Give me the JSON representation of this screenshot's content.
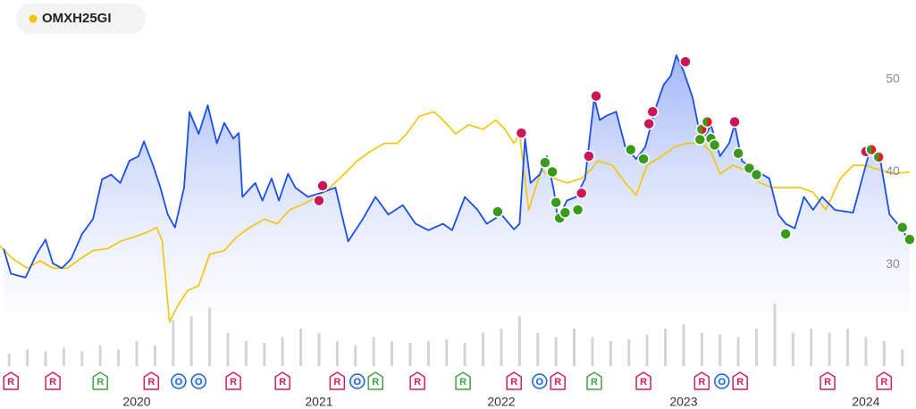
{
  "chart_data": {
    "type": "line",
    "legend": "top-left",
    "xlim": [
      2019.25,
      2024.27
    ],
    "xticks": [
      2020,
      2021,
      2022,
      2023,
      2024
    ],
    "ylim": [
      25,
      55
    ],
    "yticks": [
      30,
      40,
      50
    ],
    "series": [
      {
        "color": "#1a4fe6",
        "area": true,
        "x": [
          2019.27,
          2019.31,
          2019.39,
          2019.45,
          2019.5,
          2019.54,
          2019.59,
          2019.64,
          2019.7,
          2019.76,
          2019.81,
          2019.86,
          2019.91,
          2019.96,
          2020.01,
          2020.04,
          2020.09,
          2020.13,
          2020.17,
          2020.21,
          2020.26,
          2020.29,
          2020.34,
          2020.39,
          2020.44,
          2020.48,
          2020.53,
          2020.56,
          2020.58,
          2020.65,
          2020.69,
          2020.74,
          2020.78,
          2020.83,
          2020.87,
          2020.94,
          2021.02,
          2021.09,
          2021.16,
          2021.24,
          2021.31,
          2021.38,
          2021.46,
          2021.53,
          2021.6,
          2021.68,
          2021.73,
          2021.8,
          2021.87,
          2021.92,
          2022.0,
          2022.07,
          2022.1,
          2022.13,
          2022.16,
          2022.21,
          2022.25,
          2022.29,
          2022.31,
          2022.36,
          2022.41,
          2022.46,
          2022.51,
          2022.54,
          2022.58,
          2022.63,
          2022.68,
          2022.74,
          2022.79,
          2022.84,
          2022.89,
          2022.93,
          2022.96,
          2023.0,
          2023.05,
          2023.1,
          2023.15,
          2023.2,
          2023.25,
          2023.28,
          2023.32,
          2023.39,
          2023.47,
          2023.52,
          2023.56,
          2023.61,
          2023.66,
          2023.71,
          2023.76,
          2023.83,
          2023.93,
          2023.98,
          2024.02,
          2024.08,
          2024.13,
          2024.19,
          2024.24
        ],
        "values": [
          31.7,
          29.0,
          28.6,
          31.1,
          32.7,
          30.1,
          29.6,
          30.6,
          33.3,
          34.9,
          39.2,
          39.7,
          38.8,
          41.2,
          41.7,
          43.3,
          40.7,
          38.3,
          35.4,
          34.0,
          38.3,
          46.5,
          44.1,
          47.2,
          43.1,
          45.3,
          43.6,
          44.2,
          37.3,
          38.8,
          36.9,
          39.3,
          36.9,
          39.8,
          38.3,
          37.3,
          37.8,
          38.3,
          32.5,
          34.9,
          37.3,
          35.4,
          36.4,
          34.4,
          33.7,
          34.4,
          33.7,
          37.3,
          35.9,
          34.4,
          35.4,
          33.8,
          34.4,
          43.6,
          38.8,
          39.7,
          41.7,
          37.8,
          34.9,
          36.9,
          37.3,
          39.3,
          48.0,
          45.6,
          46.1,
          46.5,
          42.7,
          41.4,
          42.7,
          46.5,
          49.4,
          50.4,
          52.6,
          50.9,
          48.0,
          43.1,
          45.1,
          41.7,
          43.1,
          45.1,
          41.2,
          40.2,
          39.3,
          35.4,
          34.4,
          33.9,
          37.3,
          35.9,
          37.3,
          35.9,
          35.6,
          39.3,
          42.2,
          41.2,
          35.4,
          34.0,
          32.5
        ]
      },
      {
        "name": "OMXH25GI",
        "color": "#f5c400",
        "x": [
          2019.25,
          2019.32,
          2019.4,
          2019.47,
          2019.54,
          2019.62,
          2019.69,
          2019.76,
          2019.84,
          2019.91,
          2019.99,
          2020.06,
          2020.11,
          2020.14,
          2020.18,
          2020.23,
          2020.28,
          2020.34,
          2020.4,
          2020.48,
          2020.55,
          2020.62,
          2020.7,
          2020.77,
          2020.84,
          2020.92,
          2020.99,
          2021.06,
          2021.14,
          2021.21,
          2021.28,
          2021.36,
          2021.43,
          2021.48,
          2021.55,
          2021.63,
          2021.68,
          2021.75,
          2021.82,
          2021.9,
          2021.97,
          2022.02,
          2022.07,
          2022.1,
          2022.15,
          2022.22,
          2022.29,
          2022.36,
          2022.44,
          2022.49,
          2022.53,
          2022.61,
          2022.68,
          2022.74,
          2022.8,
          2022.88,
          2022.95,
          2023.02,
          2023.1,
          2023.15,
          2023.2,
          2023.27,
          2023.34,
          2023.42,
          2023.49,
          2023.56,
          2023.64,
          2023.71,
          2023.78,
          2023.86,
          2023.93,
          2024.0,
          2024.08,
          2024.15,
          2024.24
        ],
        "values": [
          32.0,
          30.6,
          29.6,
          30.4,
          29.6,
          29.6,
          30.6,
          31.5,
          31.7,
          32.5,
          33.0,
          33.5,
          34.0,
          32.5,
          23.8,
          25.7,
          27.2,
          27.7,
          31.1,
          31.5,
          33.0,
          34.0,
          34.9,
          34.4,
          35.9,
          36.6,
          37.3,
          38.3,
          39.8,
          41.2,
          42.2,
          43.1,
          43.1,
          44.1,
          46.0,
          46.5,
          45.6,
          44.1,
          45.1,
          44.6,
          45.6,
          44.6,
          43.1,
          44.1,
          35.9,
          40.2,
          39.3,
          38.8,
          39.3,
          40.2,
          41.2,
          40.7,
          38.8,
          37.5,
          40.7,
          41.7,
          42.7,
          43.1,
          43.1,
          42.2,
          39.8,
          40.7,
          40.2,
          38.8,
          38.3,
          38.3,
          38.3,
          37.8,
          35.9,
          39.3,
          40.7,
          40.7,
          40.2,
          39.8,
          40.0
        ]
      }
    ],
    "markers": [
      {
        "x": 2021.02,
        "y": 38.5,
        "colors": [
          "#c8185a"
        ]
      },
      {
        "x": 2021.0,
        "y": 36.9,
        "colors": [
          "#c8185a"
        ]
      },
      {
        "x": 2021.98,
        "y": 35.7,
        "colors": [
          "#3a9a1c"
        ]
      },
      {
        "x": 2022.11,
        "y": 44.2,
        "colors": [
          "#c8185a"
        ]
      },
      {
        "x": 2022.24,
        "y": 41.0,
        "colors": [
          "#3a9a1c"
        ]
      },
      {
        "x": 2022.28,
        "y": 40.0,
        "colors": [
          "#3a9a1c"
        ]
      },
      {
        "x": 2022.3,
        "y": 36.7,
        "colors": [
          "#3a9a1c"
        ]
      },
      {
        "x": 2022.32,
        "y": 35.0,
        "colors": [
          "#3a9a1c"
        ]
      },
      {
        "x": 2022.35,
        "y": 35.6,
        "colors": [
          "#3a9a1c"
        ]
      },
      {
        "x": 2022.42,
        "y": 35.9,
        "colors": [
          "#3a9a1c"
        ]
      },
      {
        "x": 2022.44,
        "y": 37.7,
        "colors": [
          "#c8185a"
        ]
      },
      {
        "x": 2022.48,
        "y": 41.7,
        "colors": [
          "#c8185a"
        ]
      },
      {
        "x": 2022.52,
        "y": 48.2,
        "colors": [
          "#c8185a"
        ]
      },
      {
        "x": 2022.71,
        "y": 42.4,
        "colors": [
          "#3a9a1c"
        ]
      },
      {
        "x": 2022.78,
        "y": 41.4,
        "colors": [
          "#3a9a1c"
        ]
      },
      {
        "x": 2022.81,
        "y": 45.2,
        "colors": [
          "#c8185a"
        ]
      },
      {
        "x": 2022.83,
        "y": 46.5,
        "colors": [
          "#c8185a"
        ]
      },
      {
        "x": 2023.01,
        "y": 51.9,
        "colors": [
          "#c8185a"
        ]
      },
      {
        "x": 2023.09,
        "y": 43.5,
        "colors": [
          "#3a9a1c"
        ]
      },
      {
        "x": 2023.1,
        "y": 44.6,
        "colors": [
          "#3a9a1c",
          "#e02020"
        ]
      },
      {
        "x": 2023.13,
        "y": 45.4,
        "colors": [
          "#3a9a1c",
          "#e02020"
        ]
      },
      {
        "x": 2023.15,
        "y": 43.6,
        "colors": [
          "#3a9a1c"
        ]
      },
      {
        "x": 2023.17,
        "y": 42.9,
        "colors": [
          "#3a9a1c"
        ]
      },
      {
        "x": 2023.28,
        "y": 45.4,
        "colors": [
          "#c8185a"
        ]
      },
      {
        "x": 2023.3,
        "y": 42.0,
        "colors": [
          "#3a9a1c"
        ]
      },
      {
        "x": 2023.36,
        "y": 40.4,
        "colors": [
          "#3a9a1c"
        ]
      },
      {
        "x": 2023.4,
        "y": 39.7,
        "colors": [
          "#3a9a1c"
        ]
      },
      {
        "x": 2023.56,
        "y": 33.3,
        "colors": [
          "#3a9a1c"
        ]
      },
      {
        "x": 2024.0,
        "y": 42.2,
        "colors": [
          "#c8185a"
        ]
      },
      {
        "x": 2024.03,
        "y": 42.4,
        "colors": [
          "#3a9a1c",
          "#e02020"
        ]
      },
      {
        "x": 2024.07,
        "y": 41.6,
        "colors": [
          "#3a9a1c",
          "#e02020"
        ]
      },
      {
        "x": 2024.2,
        "y": 34.0,
        "colors": [
          "#3a9a1c"
        ]
      },
      {
        "x": 2024.24,
        "y": 32.7,
        "colors": [
          "#3a9a1c"
        ]
      }
    ],
    "volume": {
      "color": "#d4d4d4",
      "x": [
        2019.3,
        2019.4,
        2019.5,
        2019.6,
        2019.7,
        2019.8,
        2019.9,
        2020.0,
        2020.1,
        2020.2,
        2020.3,
        2020.4,
        2020.5,
        2020.6,
        2020.7,
        2020.8,
        2020.9,
        2021.0,
        2021.1,
        2021.2,
        2021.3,
        2021.4,
        2021.5,
        2021.6,
        2021.7,
        2021.8,
        2021.9,
        2022.0,
        2022.1,
        2022.2,
        2022.3,
        2022.4,
        2022.5,
        2022.6,
        2022.7,
        2022.8,
        2022.9,
        2023.0,
        2023.1,
        2023.2,
        2023.3,
        2023.4,
        2023.5,
        2023.6,
        2023.7,
        2023.8,
        2023.9,
        2024.0,
        2024.1,
        2024.2
      ],
      "values": [
        15,
        20,
        18,
        22,
        18,
        25,
        20,
        30,
        25,
        55,
        60,
        70,
        40,
        30,
        28,
        35,
        45,
        40,
        30,
        25,
        35,
        30,
        28,
        30,
        32,
        28,
        40,
        45,
        60,
        40,
        35,
        45,
        35,
        30,
        32,
        38,
        45,
        50,
        40,
        38,
        35,
        45,
        75,
        40,
        45,
        40,
        45,
        35,
        30,
        20
      ]
    },
    "events": [
      {
        "x": 2019.31,
        "label": "R",
        "color": "#d81b60"
      },
      {
        "x": 2019.54,
        "label": "R",
        "color": "#d81b60"
      },
      {
        "x": 2019.8,
        "label": "R",
        "color": "#43a047"
      },
      {
        "x": 2020.08,
        "label": "R",
        "color": "#d81b60"
      },
      {
        "x": 2020.23,
        "label": "O",
        "color": "#1e63c4"
      },
      {
        "x": 2020.34,
        "label": "O",
        "color": "#1e63c4"
      },
      {
        "x": 2020.53,
        "label": "R",
        "color": "#d81b60"
      },
      {
        "x": 2020.8,
        "label": "R",
        "color": "#d81b60"
      },
      {
        "x": 2021.1,
        "label": "R",
        "color": "#d81b60"
      },
      {
        "x": 2021.21,
        "label": "O",
        "color": "#1e63c4"
      },
      {
        "x": 2021.31,
        "label": "R",
        "color": "#43a047"
      },
      {
        "x": 2021.54,
        "label": "R",
        "color": "#d81b60"
      },
      {
        "x": 2021.79,
        "label": "R",
        "color": "#43a047"
      },
      {
        "x": 2022.07,
        "label": "R",
        "color": "#d81b60"
      },
      {
        "x": 2022.21,
        "label": "O",
        "color": "#1e63c4"
      },
      {
        "x": 2022.31,
        "label": "R",
        "color": "#d81b60"
      },
      {
        "x": 2022.51,
        "label": "R",
        "color": "#43a047"
      },
      {
        "x": 2022.78,
        "label": "R",
        "color": "#d81b60"
      },
      {
        "x": 2023.1,
        "label": "R",
        "color": "#d81b60"
      },
      {
        "x": 2023.21,
        "label": "O",
        "color": "#1e63c4"
      },
      {
        "x": 2023.31,
        "label": "R",
        "color": "#d81b60"
      },
      {
        "x": 2023.79,
        "label": "R",
        "color": "#d81b60"
      },
      {
        "x": 2024.1,
        "label": "R",
        "color": "#d81b60"
      }
    ]
  }
}
